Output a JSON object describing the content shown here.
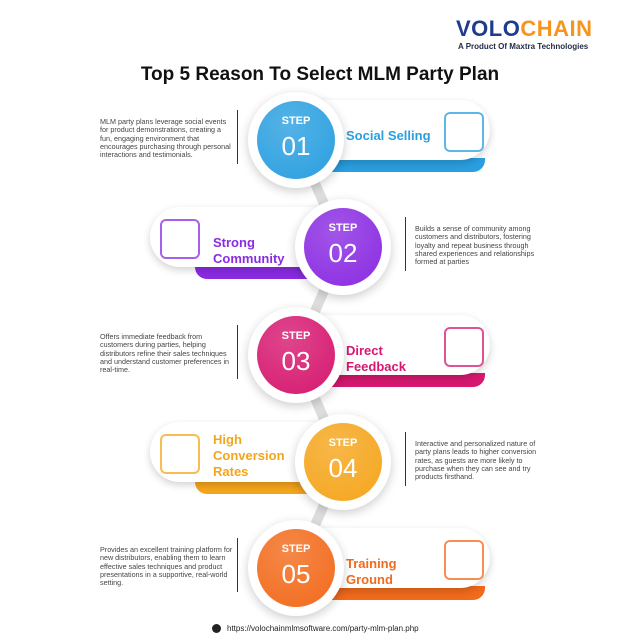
{
  "brand": {
    "name_part1": "VOLO",
    "name_part2": "CHAIN",
    "tagline": "A Product Of Maxtra Technologies"
  },
  "title": "Top 5 Reason To Select MLM Party Plan",
  "steps": [
    {
      "label": "STEP",
      "number": "01",
      "title": "Social Selling",
      "color": "#2a9fe0",
      "icon": "social-network-icon",
      "description": "MLM party plans leverage social events for product demonstrations, creating a fun, engaging environment that encourages purchasing through personal interactions and testimonials."
    },
    {
      "label": "STEP",
      "number": "02",
      "title": "Strong Community",
      "color": "#8a2be2",
      "icon": "community-hands-icon",
      "description": "Builds a sense of community among customers and distributors, fostering loyalty and repeat business through shared experiences and relationships formed at parties"
    },
    {
      "label": "STEP",
      "number": "03",
      "title": "Direct Feedback",
      "color": "#d6186f",
      "icon": "feedback-chat-icon",
      "description": "Offers immediate feedback from customers during parties, helping distributors refine their sales techniques and understand customer preferences in real-time."
    },
    {
      "label": "STEP",
      "number": "04",
      "title": "High Conversion Rates",
      "color": "#f5a51c",
      "icon": "conversion-funnel-icon",
      "description": "Interactive and personalized nature of party plans leads to higher conversion rates, as guests are more likely to purchase when they can see and try products firsthand."
    },
    {
      "label": "STEP",
      "number": "05",
      "title": "Training Ground",
      "color": "#f26a1b",
      "icon": "training-board-icon",
      "description": "Provides an excellent training platform for new distributors, enabling them to learn effective sales techniques and product presentations in a supportive, real-world setting."
    }
  ],
  "footer": {
    "url": "https://volochainmlmsoftware.com/party-mlm-plan.php"
  }
}
